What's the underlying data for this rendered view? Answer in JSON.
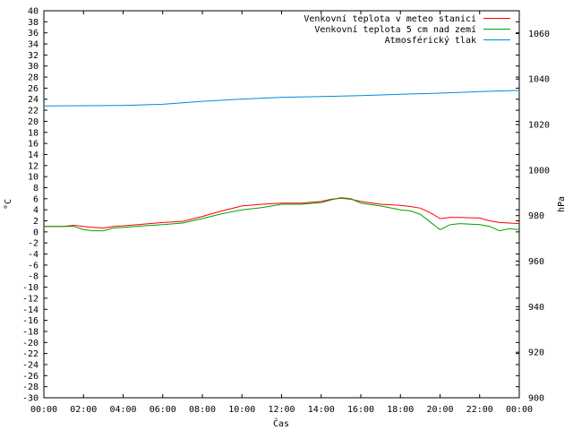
{
  "chart_data": {
    "type": "line",
    "title": "",
    "xlabel": "Čas",
    "ylabel": "°C",
    "y2label": "hPa",
    "xlim": [
      0,
      24
    ],
    "ylim": [
      -30,
      40
    ],
    "y2lim": [
      900,
      1070
    ],
    "x_ticks": [
      "00:00",
      "02:00",
      "04:00",
      "06:00",
      "08:00",
      "10:00",
      "12:00",
      "14:00",
      "16:00",
      "18:00",
      "20:00",
      "22:00",
      "00:00"
    ],
    "y_ticks": [
      -30,
      -28,
      -26,
      -24,
      -22,
      -20,
      -18,
      -16,
      -14,
      -12,
      -10,
      -8,
      -6,
      -4,
      -2,
      0,
      2,
      4,
      6,
      8,
      10,
      12,
      14,
      16,
      18,
      20,
      22,
      24,
      26,
      28,
      30,
      32,
      34,
      36,
      38,
      40
    ],
    "y2_ticks": [
      900,
      920,
      940,
      960,
      980,
      1000,
      1020,
      1040,
      1060
    ],
    "grid": false,
    "legend_position": "top-right",
    "series": [
      {
        "name": "Venkovní teplota v meteo stanici",
        "color": "#ff0000",
        "axis": "left",
        "x": [
          0,
          1,
          1.5,
          2,
          2.5,
          3,
          3.5,
          4,
          5,
          6,
          7,
          8,
          9,
          10,
          11,
          12,
          13,
          14,
          14.5,
          15,
          15.5,
          16,
          17,
          18,
          18.5,
          19,
          19.5,
          20,
          20.5,
          21,
          22,
          22.5,
          23,
          23.5,
          24
        ],
        "y": [
          1.0,
          1.0,
          1.2,
          1.0,
          0.8,
          0.7,
          1.0,
          1.1,
          1.4,
          1.7,
          1.9,
          2.8,
          3.8,
          4.7,
          5.0,
          5.2,
          5.2,
          5.5,
          5.9,
          6.1,
          5.9,
          5.5,
          5.0,
          4.8,
          4.6,
          4.3,
          3.5,
          2.4,
          2.6,
          2.6,
          2.5,
          2.0,
          1.7,
          1.6,
          1.5
        ]
      },
      {
        "name": "Venkovní teplota 5 cm nad zemí",
        "color": "#00a000",
        "axis": "left",
        "x": [
          0,
          1,
          1.5,
          2,
          2.5,
          3,
          3.5,
          4,
          5,
          6,
          7,
          8,
          9,
          10,
          11,
          12,
          13,
          14,
          14.5,
          15,
          15.5,
          16,
          17,
          18,
          18.5,
          19,
          19.5,
          20,
          20.5,
          21,
          22,
          22.5,
          23,
          23.5,
          24
        ],
        "y": [
          1.0,
          1.0,
          1.0,
          0.4,
          0.2,
          0.2,
          0.7,
          0.8,
          1.1,
          1.3,
          1.6,
          2.4,
          3.3,
          4.0,
          4.4,
          5.0,
          5.0,
          5.3,
          5.8,
          6.2,
          6.0,
          5.2,
          4.7,
          4.0,
          3.8,
          3.2,
          1.8,
          0.4,
          1.3,
          1.5,
          1.3,
          1.0,
          0.2,
          0.6,
          0.4
        ]
      },
      {
        "name": "Atmosférický tlak",
        "color": "#008ad8",
        "axis": "right",
        "x": [
          0,
          2,
          4,
          6,
          8,
          10,
          12,
          14,
          16,
          18,
          20,
          22,
          24
        ],
        "y": [
          1028.2,
          1028.3,
          1028.4,
          1028.9,
          1030.2,
          1031.2,
          1032.0,
          1032.3,
          1032.7,
          1033.3,
          1033.8,
          1034.5,
          1035.0
        ]
      }
    ]
  }
}
